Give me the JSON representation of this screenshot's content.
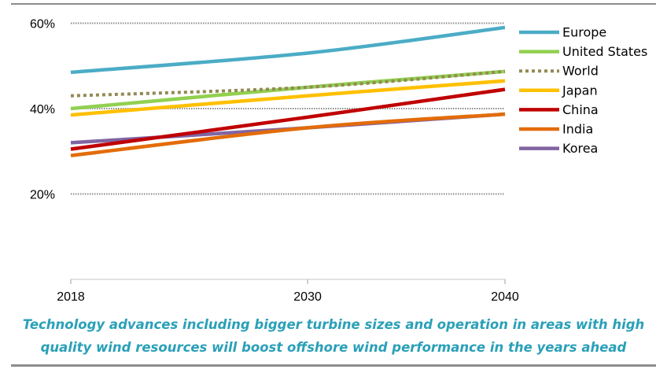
{
  "chart_data": {
    "type": "line",
    "x": [
      2018,
      2030,
      2040
    ],
    "xlim": [
      2018,
      2040
    ],
    "ylim": [
      0,
      60
    ],
    "y_ticks": [
      20,
      40,
      60
    ],
    "y_tick_labels": [
      "20%",
      "40%",
      "60%"
    ],
    "x_tick_labels": [
      "2018",
      "2030",
      "2040"
    ],
    "grid": "horizontal dotted at 20%, 40%, 60%",
    "legend_position": "right",
    "series": [
      {
        "name": "Europe",
        "values": [
          48.5,
          53,
          59
        ],
        "color": "#4bacc6",
        "style": "solid"
      },
      {
        "name": "United States",
        "values": [
          40,
          45,
          48.7
        ],
        "color": "#92d050",
        "style": "solid"
      },
      {
        "name": "World",
        "values": [
          43,
          45,
          48.7
        ],
        "color": "#948a54",
        "style": "dotted"
      },
      {
        "name": "Japan",
        "values": [
          38.5,
          43,
          46.5
        ],
        "color": "#ffc000",
        "style": "solid"
      },
      {
        "name": "China",
        "values": [
          30.5,
          38,
          44.5
        ],
        "color": "#c00000",
        "style": "solid"
      },
      {
        "name": "India",
        "values": [
          29,
          35.5,
          38.7
        ],
        "color": "#e36c09",
        "style": "solid"
      },
      {
        "name": "Korea",
        "values": [
          32,
          35.5,
          38.7
        ],
        "color": "#8064a2",
        "style": "solid"
      }
    ]
  },
  "caption": {
    "line1": "Technology advances including bigger turbine sizes and operation in areas with high",
    "line2": "quality wind resources will boost offshore wind performance in the years ahead"
  }
}
